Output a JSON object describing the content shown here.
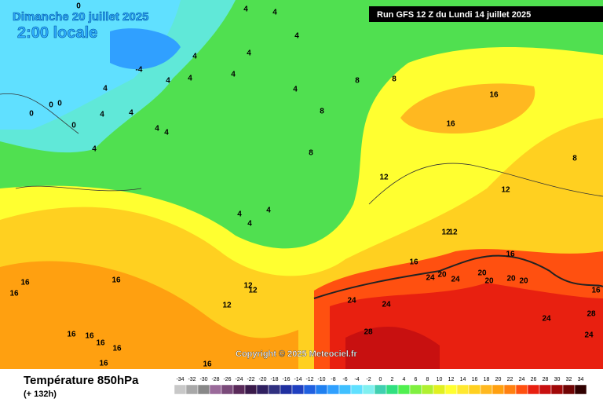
{
  "header": {
    "date": "Dimanche 20 juillet 2025",
    "time": "2:00 locale",
    "run": "Run GFS 12 Z du Lundi 14 juillet 2025"
  },
  "copyright": "Copyright © 2025 Meteociel.fr",
  "footer": {
    "title": "Température 850hPa",
    "lead": "(+ 132h)"
  },
  "map": {
    "contour_labels": [
      0,
      4,
      4,
      4,
      4,
      4,
      4,
      8,
      8,
      8,
      8,
      12,
      12,
      12,
      12,
      16,
      16,
      16,
      16,
      16,
      16,
      16,
      12,
      12,
      12,
      20,
      20,
      20,
      20,
      20,
      24,
      24,
      24,
      24,
      24,
      24,
      28,
      28,
      16,
      16,
      16,
      16,
      16,
      16,
      8,
      16,
      4,
      4,
      4,
      4,
      4,
      4,
      4,
      4,
      4,
      4,
      0,
      0,
      0,
      0,
      -4,
      4,
      4
    ]
  },
  "colorbar": {
    "labels": [
      -34,
      -32,
      -30,
      -28,
      -26,
      -24,
      -22,
      -20,
      -18,
      -16,
      -14,
      -12,
      -10,
      -8,
      -6,
      -4,
      -2,
      0,
      2,
      4,
      6,
      8,
      10,
      12,
      14,
      16,
      18,
      20,
      22,
      24,
      26,
      28,
      30,
      32,
      34
    ],
    "colors": [
      "#c8c8c8",
      "#a8a8a8",
      "#888888",
      "#9a6a9a",
      "#7a4a7a",
      "#5a2a5a",
      "#3a1a4a",
      "#302060",
      "#303080",
      "#2030a0",
      "#2040c0",
      "#2060e0",
      "#2080f0",
      "#30a0ff",
      "#40c0ff",
      "#60e0ff",
      "#80f0f0",
      "#40d0b0",
      "#30e080",
      "#50f050",
      "#80f040",
      "#b0f030",
      "#e0f020",
      "#ffff30",
      "#ffe830",
      "#ffd020",
      "#ffb820",
      "#ffa010",
      "#ff8010",
      "#ff5010",
      "#e82010",
      "#c81010",
      "#a00808",
      "#700404",
      "#300000"
    ]
  }
}
